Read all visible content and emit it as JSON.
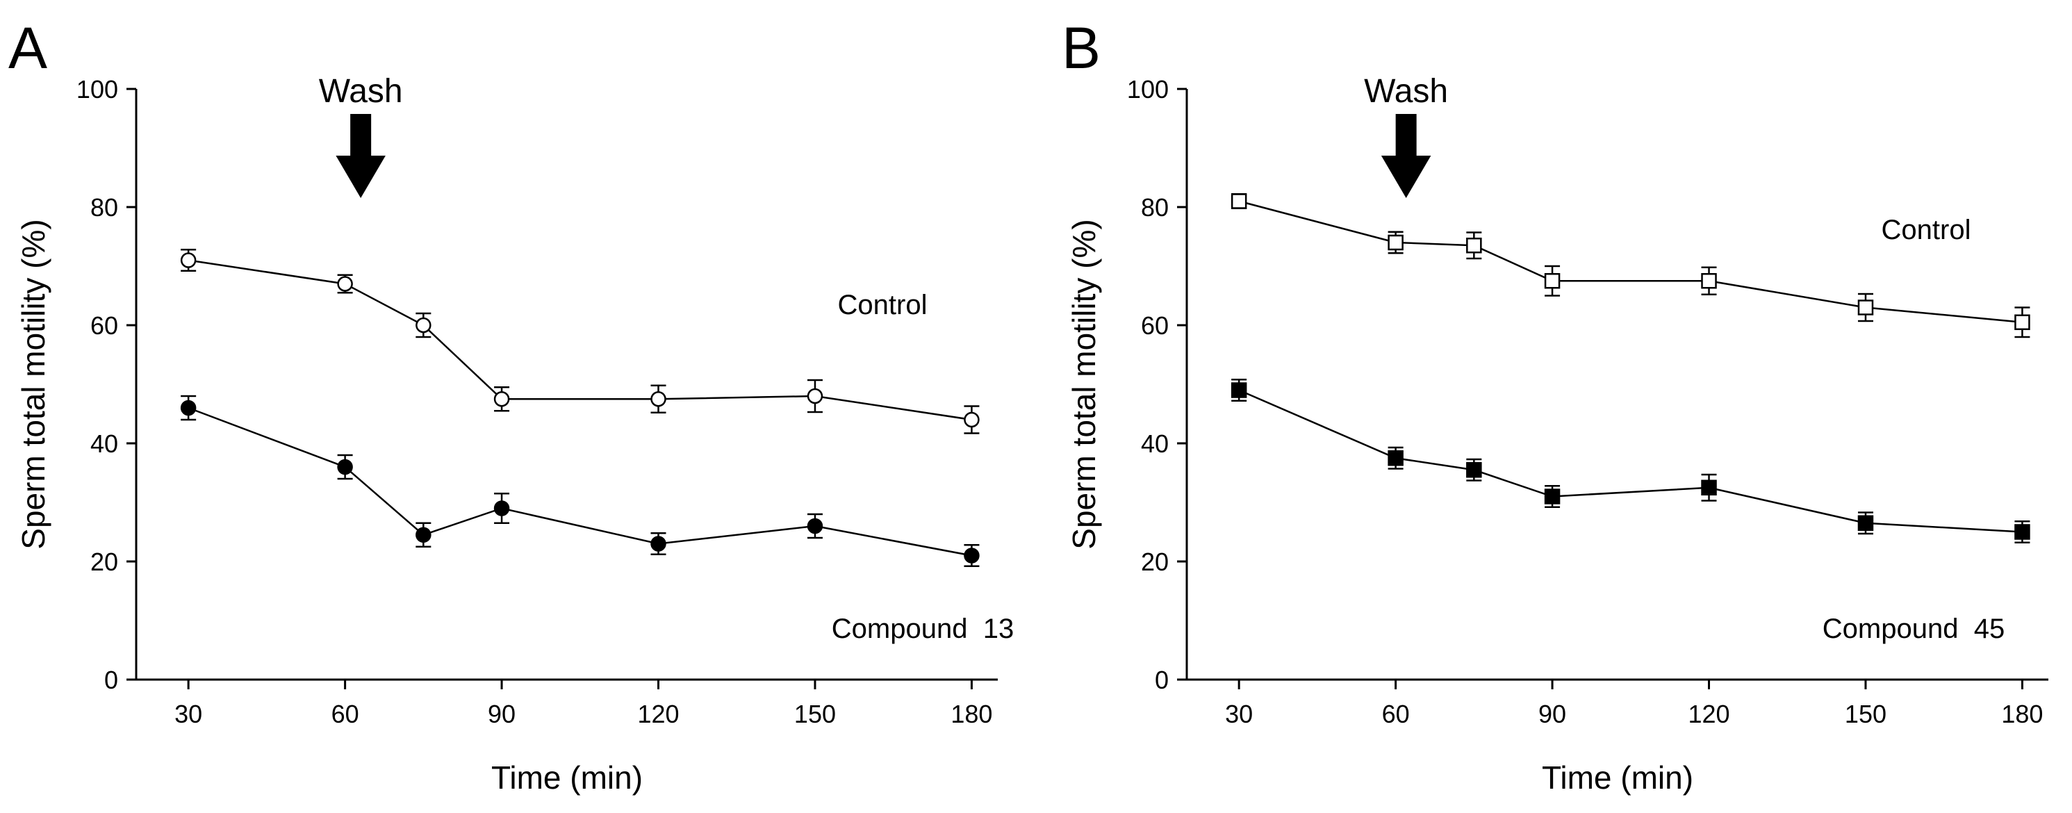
{
  "chart_data": [
    {
      "type": "line",
      "panel_label": "A",
      "xlabel": "Time (min)",
      "ylabel": "Sperm total motility (%)",
      "xlim": [
        20,
        185
      ],
      "ylim": [
        0,
        100
      ],
      "xticks": [
        30,
        60,
        90,
        120,
        150,
        180
      ],
      "yticks": [
        0,
        20,
        40,
        60,
        80,
        100
      ],
      "x": [
        30,
        60,
        75,
        90,
        120,
        150,
        180
      ],
      "grid": false,
      "marker_shape": "circle",
      "series": [
        {
          "name": "Control",
          "marker_fill": "open",
          "values": [
            71,
            67,
            60,
            47.5,
            47.5,
            48,
            44
          ],
          "errors": [
            1.8,
            1.5,
            2.0,
            2.0,
            2.3,
            2.7,
            2.3
          ]
        },
        {
          "name": "Compound 13",
          "marker_fill": "filled",
          "values": [
            46,
            36,
            24.5,
            29,
            23,
            26,
            21
          ],
          "errors": [
            2.0,
            2.0,
            2.0,
            2.5,
            1.8,
            2.0,
            1.8
          ]
        }
      ],
      "annotations": [
        {
          "text": "Control",
          "near_series": "Control",
          "position": "right"
        },
        {
          "text": "Compound  13",
          "near_series": "Compound 13",
          "position": "bottom-right"
        },
        {
          "text": "Wash",
          "arrow_at_x": 63,
          "position": "top"
        }
      ]
    },
    {
      "type": "line",
      "panel_label": "B",
      "xlabel": "Time (min)",
      "ylabel": "Sperm total motility (%)",
      "xlim": [
        20,
        185
      ],
      "ylim": [
        0,
        100
      ],
      "xticks": [
        30,
        60,
        90,
        120,
        150,
        180
      ],
      "yticks": [
        0,
        20,
        40,
        60,
        80,
        100
      ],
      "x": [
        30,
        60,
        75,
        90,
        120,
        150,
        180
      ],
      "grid": false,
      "marker_shape": "square",
      "series": [
        {
          "name": "Control",
          "marker_fill": "open",
          "values": [
            81,
            74,
            73.5,
            67.5,
            67.5,
            63,
            60.5
          ],
          "errors": [
            1.2,
            1.8,
            2.2,
            2.5,
            2.3,
            2.3,
            2.5
          ]
        },
        {
          "name": "Compound 45",
          "marker_fill": "filled",
          "values": [
            49,
            37.5,
            35.5,
            31,
            32.5,
            26.5,
            25
          ],
          "errors": [
            1.8,
            1.8,
            1.8,
            1.8,
            2.2,
            1.8,
            1.8
          ]
        }
      ],
      "annotations": [
        {
          "text": "Control",
          "near_series": "Control",
          "position": "right"
        },
        {
          "text": "Compound  45",
          "near_series": "Compound 45",
          "position": "bottom-right"
        },
        {
          "text": "Wash",
          "arrow_at_x": 62,
          "position": "top"
        }
      ]
    }
  ]
}
